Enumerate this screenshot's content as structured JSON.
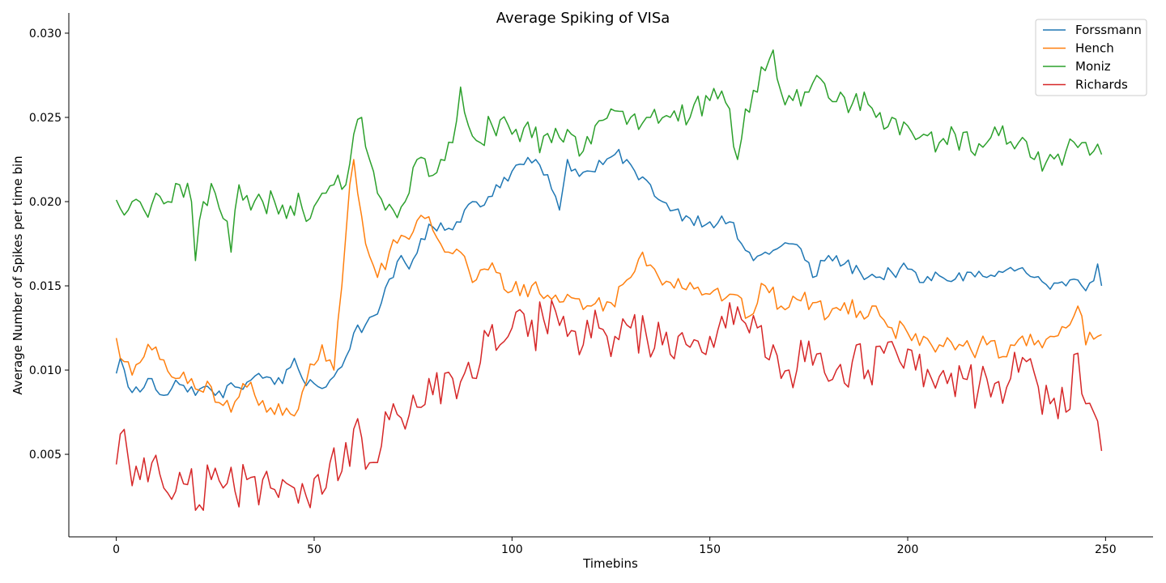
{
  "chart_data": {
    "type": "line",
    "title": "Average Spiking of VISa",
    "xlabel": "Timebins",
    "ylabel": "Average Number of Spikes per time bin",
    "xlim": [
      -12,
      262
    ],
    "ylim": [
      0.0001,
      0.0312
    ],
    "xticks": [
      0,
      50,
      100,
      150,
      200,
      250
    ],
    "xtick_labels": [
      "0",
      "50",
      "100",
      "150",
      "200",
      "250"
    ],
    "yticks": [
      0.005,
      0.01,
      0.015,
      0.02,
      0.025,
      0.03
    ],
    "ytick_labels": [
      "0.005",
      "0.010",
      "0.015",
      "0.020",
      "0.025",
      "0.030"
    ],
    "grid": false,
    "legend_position": "top-right",
    "series": [
      {
        "name": "Forssmann",
        "color": "#1f77b4",
        "keypoints": [
          [
            0,
            0.0098
          ],
          [
            1,
            0.0107
          ],
          [
            3,
            0.009
          ],
          [
            6,
            0.0087
          ],
          [
            8,
            0.0095
          ],
          [
            12,
            0.0085
          ],
          [
            15,
            0.0094
          ],
          [
            18,
            0.0087
          ],
          [
            22,
            0.009
          ],
          [
            25,
            0.0085
          ],
          [
            30,
            0.009
          ],
          [
            34,
            0.0094
          ],
          [
            38,
            0.0096
          ],
          [
            42,
            0.0092
          ],
          [
            45,
            0.0107
          ],
          [
            47,
            0.0095
          ],
          [
            50,
            0.0092
          ],
          [
            53,
            0.009
          ],
          [
            57,
            0.0102
          ],
          [
            60,
            0.0122
          ],
          [
            63,
            0.0127
          ],
          [
            67,
            0.014
          ],
          [
            70,
            0.0155
          ],
          [
            72,
            0.0168
          ],
          [
            74,
            0.016
          ],
          [
            77,
            0.0178
          ],
          [
            80,
            0.0185
          ],
          [
            83,
            0.0183
          ],
          [
            86,
            0.0188
          ],
          [
            88,
            0.0195
          ],
          [
            90,
            0.02
          ],
          [
            93,
            0.0198
          ],
          [
            96,
            0.021
          ],
          [
            100,
            0.0218
          ],
          [
            103,
            0.0222
          ],
          [
            106,
            0.0225
          ],
          [
            109,
            0.0216
          ],
          [
            112,
            0.0195
          ],
          [
            114,
            0.0225
          ],
          [
            117,
            0.0215
          ],
          [
            120,
            0.0218
          ],
          [
            123,
            0.0222
          ],
          [
            126,
            0.0228
          ],
          [
            129,
            0.0225
          ],
          [
            132,
            0.0213
          ],
          [
            135,
            0.021
          ],
          [
            138,
            0.02
          ],
          [
            141,
            0.0195
          ],
          [
            145,
            0.019
          ],
          [
            150,
            0.0188
          ],
          [
            155,
            0.0188
          ],
          [
            158,
            0.0175
          ],
          [
            161,
            0.0165
          ],
          [
            164,
            0.017
          ],
          [
            167,
            0.0172
          ],
          [
            170,
            0.0175
          ],
          [
            173,
            0.0172
          ],
          [
            176,
            0.0155
          ],
          [
            180,
            0.0168
          ],
          [
            184,
            0.0163
          ],
          [
            188,
            0.0158
          ],
          [
            192,
            0.0155
          ],
          [
            196,
            0.0158
          ],
          [
            200,
            0.016
          ],
          [
            204,
            0.0152
          ],
          [
            208,
            0.0156
          ],
          [
            212,
            0.0154
          ],
          [
            216,
            0.0158
          ],
          [
            220,
            0.0155
          ],
          [
            224,
            0.0158
          ],
          [
            228,
            0.016
          ],
          [
            232,
            0.0155
          ],
          [
            236,
            0.0148
          ],
          [
            240,
            0.015
          ],
          [
            244,
            0.015
          ],
          [
            247,
            0.0153
          ],
          [
            248,
            0.0163
          ],
          [
            249,
            0.015
          ]
        ],
        "noise": 0.0004
      },
      {
        "name": "Hench",
        "color": "#ff7f0e",
        "keypoints": [
          [
            0,
            0.0119
          ],
          [
            2,
            0.0105
          ],
          [
            4,
            0.0097
          ],
          [
            7,
            0.0108
          ],
          [
            9,
            0.0112
          ],
          [
            12,
            0.0106
          ],
          [
            15,
            0.0095
          ],
          [
            18,
            0.0092
          ],
          [
            21,
            0.0088
          ],
          [
            24,
            0.009
          ],
          [
            27,
            0.0079
          ],
          [
            29,
            0.0075
          ],
          [
            32,
            0.0092
          ],
          [
            35,
            0.0085
          ],
          [
            38,
            0.0075
          ],
          [
            41,
            0.008
          ],
          [
            44,
            0.0074
          ],
          [
            47,
            0.0087
          ],
          [
            50,
            0.0103
          ],
          [
            52,
            0.0115
          ],
          [
            55,
            0.01
          ],
          [
            57,
            0.015
          ],
          [
            59,
            0.021
          ],
          [
            60,
            0.0225
          ],
          [
            61,
            0.0205
          ],
          [
            63,
            0.0175
          ],
          [
            66,
            0.0155
          ],
          [
            69,
            0.017
          ],
          [
            72,
            0.018
          ],
          [
            75,
            0.0182
          ],
          [
            78,
            0.019
          ],
          [
            80,
            0.0183
          ],
          [
            84,
            0.017
          ],
          [
            87,
            0.017
          ],
          [
            90,
            0.0152
          ],
          [
            93,
            0.016
          ],
          [
            96,
            0.0158
          ],
          [
            100,
            0.0147
          ],
          [
            105,
            0.015
          ],
          [
            110,
            0.0142
          ],
          [
            115,
            0.0143
          ],
          [
            120,
            0.0138
          ],
          [
            125,
            0.014
          ],
          [
            130,
            0.0155
          ],
          [
            133,
            0.017
          ],
          [
            136,
            0.016
          ],
          [
            140,
            0.0152
          ],
          [
            145,
            0.0152
          ],
          [
            150,
            0.0145
          ],
          [
            155,
            0.0145
          ],
          [
            160,
            0.0132
          ],
          [
            164,
            0.015
          ],
          [
            168,
            0.0138
          ],
          [
            172,
            0.0142
          ],
          [
            176,
            0.014
          ],
          [
            180,
            0.0132
          ],
          [
            184,
            0.014
          ],
          [
            188,
            0.0135
          ],
          [
            192,
            0.0138
          ],
          [
            196,
            0.0125
          ],
          [
            200,
            0.0122
          ],
          [
            204,
            0.012
          ],
          [
            208,
            0.0115
          ],
          [
            212,
            0.0112
          ],
          [
            216,
            0.0112
          ],
          [
            220,
            0.0115
          ],
          [
            224,
            0.0108
          ],
          [
            228,
            0.0118
          ],
          [
            232,
            0.0115
          ],
          [
            236,
            0.012
          ],
          [
            240,
            0.0125
          ],
          [
            243,
            0.0138
          ],
          [
            245,
            0.0115
          ],
          [
            248,
            0.012
          ],
          [
            249,
            0.0121
          ]
        ],
        "noise": 0.0006
      },
      {
        "name": "Moniz",
        "color": "#2ca02c",
        "keypoints": [
          [
            0,
            0.0201
          ],
          [
            2,
            0.0192
          ],
          [
            4,
            0.02
          ],
          [
            7,
            0.0195
          ],
          [
            10,
            0.0205
          ],
          [
            13,
            0.02
          ],
          [
            16,
            0.021
          ],
          [
            19,
            0.02
          ],
          [
            20,
            0.0165
          ],
          [
            22,
            0.02
          ],
          [
            25,
            0.0205
          ],
          [
            27,
            0.019
          ],
          [
            29,
            0.017
          ],
          [
            31,
            0.021
          ],
          [
            34,
            0.0195
          ],
          [
            37,
            0.02
          ],
          [
            40,
            0.02
          ],
          [
            43,
            0.019
          ],
          [
            46,
            0.0205
          ],
          [
            49,
            0.019
          ],
          [
            52,
            0.0205
          ],
          [
            55,
            0.021
          ],
          [
            58,
            0.021
          ],
          [
            60,
            0.024
          ],
          [
            62,
            0.025
          ],
          [
            64,
            0.0225
          ],
          [
            66,
            0.0205
          ],
          [
            70,
            0.0195
          ],
          [
            73,
            0.02
          ],
          [
            76,
            0.0225
          ],
          [
            79,
            0.0215
          ],
          [
            82,
            0.0225
          ],
          [
            85,
            0.0235
          ],
          [
            87,
            0.0268
          ],
          [
            89,
            0.0245
          ],
          [
            92,
            0.0235
          ],
          [
            95,
            0.0245
          ],
          [
            100,
            0.024
          ],
          [
            105,
            0.0238
          ],
          [
            110,
            0.0235
          ],
          [
            115,
            0.024
          ],
          [
            118,
            0.023
          ],
          [
            121,
            0.0245
          ],
          [
            125,
            0.0255
          ],
          [
            130,
            0.025
          ],
          [
            135,
            0.025
          ],
          [
            140,
            0.025
          ],
          [
            145,
            0.025
          ],
          [
            150,
            0.026
          ],
          [
            155,
            0.0255
          ],
          [
            157,
            0.0225
          ],
          [
            159,
            0.0255
          ],
          [
            162,
            0.0265
          ],
          [
            166,
            0.029
          ],
          [
            168,
            0.0265
          ],
          [
            171,
            0.026
          ],
          [
            175,
            0.0265
          ],
          [
            179,
            0.027
          ],
          [
            183,
            0.0265
          ],
          [
            186,
            0.0258
          ],
          [
            189,
            0.0265
          ],
          [
            192,
            0.025
          ],
          [
            196,
            0.025
          ],
          [
            200,
            0.0245
          ],
          [
            204,
            0.024
          ],
          [
            208,
            0.0235
          ],
          [
            212,
            0.024
          ],
          [
            216,
            0.023
          ],
          [
            220,
            0.0235
          ],
          [
            224,
            0.0245
          ],
          [
            228,
            0.0235
          ],
          [
            232,
            0.0225
          ],
          [
            236,
            0.0228
          ],
          [
            240,
            0.023
          ],
          [
            244,
            0.0235
          ],
          [
            247,
            0.023
          ],
          [
            249,
            0.0228
          ]
        ],
        "noise": 0.0009
      },
      {
        "name": "Richards",
        "color": "#d62728",
        "keypoints": [
          [
            0,
            0.0044
          ],
          [
            1,
            0.0062
          ],
          [
            3,
            0.0048
          ],
          [
            6,
            0.0035
          ],
          [
            9,
            0.0045
          ],
          [
            12,
            0.003
          ],
          [
            15,
            0.0028
          ],
          [
            18,
            0.0032
          ],
          [
            21,
            0.002
          ],
          [
            24,
            0.0035
          ],
          [
            27,
            0.003
          ],
          [
            30,
            0.0028
          ],
          [
            33,
            0.0035
          ],
          [
            36,
            0.002
          ],
          [
            39,
            0.003
          ],
          [
            42,
            0.0035
          ],
          [
            45,
            0.003
          ],
          [
            48,
            0.0025
          ],
          [
            51,
            0.0038
          ],
          [
            54,
            0.0045
          ],
          [
            57,
            0.004
          ],
          [
            60,
            0.0065
          ],
          [
            62,
            0.006
          ],
          [
            64,
            0.0045
          ],
          [
            67,
            0.0055
          ],
          [
            70,
            0.008
          ],
          [
            73,
            0.0065
          ],
          [
            76,
            0.0078
          ],
          [
            79,
            0.0095
          ],
          [
            82,
            0.008
          ],
          [
            85,
            0.0095
          ],
          [
            88,
            0.0098
          ],
          [
            91,
            0.0095
          ],
          [
            94,
            0.012
          ],
          [
            97,
            0.0115
          ],
          [
            100,
            0.0125
          ],
          [
            104,
            0.012
          ],
          [
            108,
            0.013
          ],
          [
            111,
            0.0135
          ],
          [
            114,
            0.012
          ],
          [
            118,
            0.0115
          ],
          [
            122,
            0.0125
          ],
          [
            126,
            0.012
          ],
          [
            130,
            0.0125
          ],
          [
            134,
            0.012
          ],
          [
            138,
            0.0115
          ],
          [
            142,
            0.012
          ],
          [
            146,
            0.0118
          ],
          [
            150,
            0.012
          ],
          [
            154,
            0.0125
          ],
          [
            158,
            0.013
          ],
          [
            162,
            0.0125
          ],
          [
            166,
            0.0115
          ],
          [
            170,
            0.01
          ],
          [
            174,
            0.0105
          ],
          [
            178,
            0.011
          ],
          [
            182,
            0.01
          ],
          [
            186,
            0.0105
          ],
          [
            190,
            0.01
          ],
          [
            194,
            0.011
          ],
          [
            198,
            0.0105
          ],
          [
            202,
            0.01
          ],
          [
            206,
            0.0095
          ],
          [
            210,
            0.0092
          ],
          [
            214,
            0.0095
          ],
          [
            218,
            0.009
          ],
          [
            222,
            0.0092
          ],
          [
            226,
            0.0095
          ],
          [
            230,
            0.0105
          ],
          [
            233,
            0.009
          ],
          [
            236,
            0.008
          ],
          [
            240,
            0.0075
          ],
          [
            243,
            0.011
          ],
          [
            245,
            0.008
          ],
          [
            247,
            0.0075
          ],
          [
            249,
            0.0052
          ]
        ],
        "noise": 0.0014
      }
    ]
  }
}
